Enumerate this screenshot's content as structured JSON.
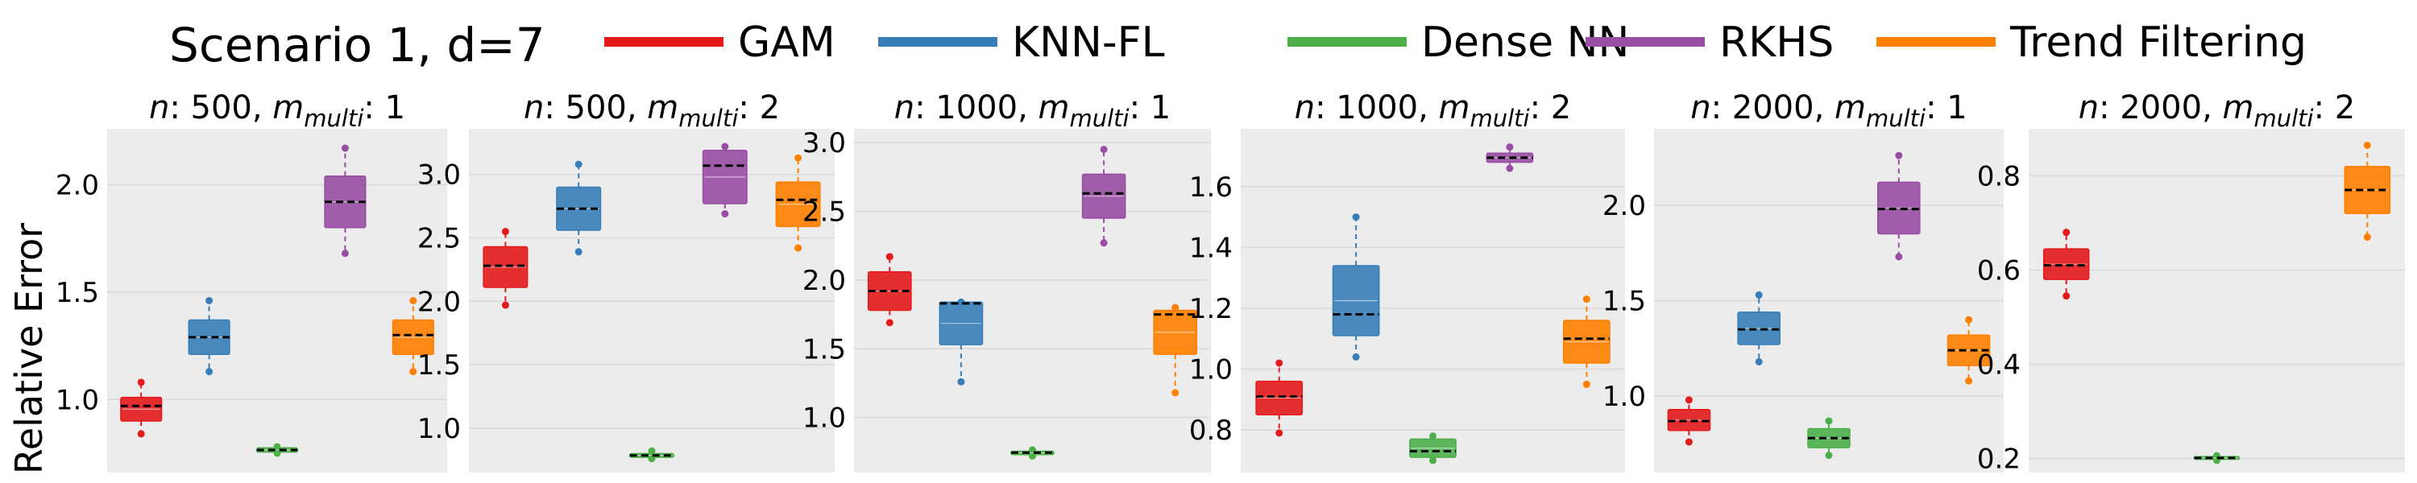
{
  "figure": {
    "legend_title": "Scenario 1, d=7",
    "ylabel": "Relative Error"
  },
  "chart_data": {
    "type": "box",
    "title": "Scenario 1, d=7",
    "ylabel": "Relative Error",
    "xlabel": "",
    "legend_placement": "top",
    "grid": true,
    "methods": [
      {
        "name": "GAM",
        "color": "#e41a1c"
      },
      {
        "name": "KNN-FL",
        "color": "#377eb8"
      },
      {
        "name": "Dense NN",
        "color": "#4daf4a"
      },
      {
        "name": "RKHS",
        "color": "#984ea3"
      },
      {
        "name": "Trend Filtering",
        "color": "#ff7f00"
      }
    ],
    "panels": [
      {
        "n": "500",
        "m_multi": "1",
        "ylim": [
          0.66,
          2.26
        ],
        "yticks": [
          1.0,
          1.5,
          2.0
        ],
        "ytick_labels": [
          "1.0",
          "1.5",
          "2.0"
        ],
        "boxes": [
          {
            "method": "GAM",
            "whislo": 0.84,
            "q1": 0.9,
            "median": 0.97,
            "q3": 1.01,
            "whishi": 1.08
          },
          {
            "method": "KNN-FL",
            "whislo": 1.13,
            "q1": 1.21,
            "median": 1.29,
            "q3": 1.37,
            "whishi": 1.46
          },
          {
            "method": "Dense NN",
            "whislo": 0.75,
            "q1": 0.755,
            "median": 0.765,
            "q3": 0.775,
            "whishi": 0.78
          },
          {
            "method": "RKHS",
            "whislo": 1.68,
            "q1": 1.8,
            "median": 1.92,
            "q3": 2.04,
            "whishi": 2.17
          },
          {
            "method": "Trend Filtering",
            "whislo": 1.13,
            "q1": 1.21,
            "median": 1.3,
            "q3": 1.37,
            "whishi": 1.46
          }
        ]
      },
      {
        "n": "500",
        "m_multi": "2",
        "ylim": [
          0.65,
          3.36
        ],
        "yticks": [
          1.0,
          1.5,
          2.0,
          2.5,
          3.0
        ],
        "ytick_labels": [
          "1.0",
          "1.5",
          "2.0",
          "2.5",
          "3.0"
        ],
        "boxes": [
          {
            "method": "GAM",
            "whislo": 1.97,
            "q1": 2.11,
            "median": 2.28,
            "q3": 2.43,
            "whishi": 2.55
          },
          {
            "method": "KNN-FL",
            "whislo": 2.39,
            "q1": 2.56,
            "median": 2.73,
            "q3": 2.9,
            "whishi": 3.08
          },
          {
            "method": "Dense NN",
            "whislo": 0.76,
            "q1": 0.77,
            "median": 0.785,
            "q3": 0.8,
            "whishi": 0.82
          },
          {
            "method": "RKHS",
            "whislo": 2.69,
            "q1": 2.77,
            "median": 3.07,
            "q3": 3.19,
            "whishi": 3.22
          },
          {
            "method": "Trend Filtering",
            "whislo": 2.42,
            "q1": 2.59,
            "median": 2.8,
            "q3": 2.94,
            "whishi": 3.13
          }
        ]
      },
      {
        "n": "1000",
        "m_multi": "1",
        "ylim": [
          0.6,
          3.1
        ],
        "yticks": [
          1.0,
          1.5,
          2.0,
          2.5,
          3.0
        ],
        "ytick_labels": [
          "1.0",
          "1.5",
          "2.0",
          "2.5",
          "3.0"
        ],
        "boxes": [
          {
            "method": "GAM",
            "whislo": 1.69,
            "q1": 1.78,
            "median": 1.92,
            "q3": 2.06,
            "whishi": 2.17
          },
          {
            "method": "KNN-FL",
            "whislo": 1.26,
            "q1": 1.53,
            "median": 1.83,
            "q3": 1.84,
            "whishi": 1.84
          },
          {
            "method": "Dense NN",
            "whislo": 0.72,
            "q1": 0.73,
            "median": 0.745,
            "q3": 0.755,
            "whishi": 0.765
          },
          {
            "method": "RKHS",
            "whislo": 2.27,
            "q1": 2.45,
            "median": 2.63,
            "q3": 2.77,
            "whishi": 2.95
          },
          {
            "method": "Trend Filtering",
            "whislo": 1.18,
            "q1": 1.46,
            "median": 1.75,
            "q3": 1.78,
            "whishi": 1.8
          }
        ]
      },
      {
        "n": "1000",
        "m_multi": "2",
        "ylim": [
          0.66,
          1.79
        ],
        "yticks": [
          0.8,
          1.0,
          1.2,
          1.4,
          1.6
        ],
        "ytick_labels": [
          "0.8",
          "1.0",
          "1.2",
          "1.4",
          "1.6"
        ],
        "boxes": [
          {
            "method": "GAM",
            "whislo": 0.79,
            "q1": 0.85,
            "median": 0.91,
            "q3": 0.96,
            "whishi": 1.02
          },
          {
            "method": "KNN-FL",
            "whislo": 1.04,
            "q1": 1.11,
            "median": 1.18,
            "q3": 1.34,
            "whishi": 1.5
          },
          {
            "method": "Dense NN",
            "whislo": 0.7,
            "q1": 0.71,
            "median": 0.73,
            "q3": 0.77,
            "whishi": 0.78
          },
          {
            "method": "RKHS",
            "whislo": 1.66,
            "q1": 1.68,
            "median": 1.695,
            "q3": 1.71,
            "whishi": 1.73
          },
          {
            "method": "Trend Filtering",
            "whislo": 0.95,
            "q1": 1.02,
            "median": 1.1,
            "q3": 1.16,
            "whishi": 1.23
          }
        ]
      },
      {
        "n": "2000",
        "m_multi": "1",
        "ylim": [
          0.6,
          2.4
        ],
        "yticks": [
          1.0,
          1.5,
          2.0
        ],
        "ytick_labels": [
          "1.0",
          "1.5",
          "2.0"
        ],
        "boxes": [
          {
            "method": "GAM",
            "whislo": 0.76,
            "q1": 0.82,
            "median": 0.87,
            "q3": 0.93,
            "whishi": 0.98
          },
          {
            "method": "KNN-FL",
            "whislo": 1.18,
            "q1": 1.27,
            "median": 1.35,
            "q3": 1.44,
            "whishi": 1.53
          },
          {
            "method": "Dense NN",
            "whislo": 0.69,
            "q1": 0.73,
            "median": 0.78,
            "q3": 0.83,
            "whishi": 0.87
          },
          {
            "method": "RKHS",
            "whislo": 1.73,
            "q1": 1.85,
            "median": 1.98,
            "q3": 2.12,
            "whishi": 2.26
          },
          {
            "method": "Trend Filtering",
            "whislo": 1.08,
            "q1": 1.16,
            "median": 1.24,
            "q3": 1.32,
            "whishi": 1.4
          }
        ]
      },
      {
        "n": "2000",
        "m_multi": "2",
        "ylim": [
          0.17,
          0.9
        ],
        "yticks": [
          0.2,
          0.4,
          0.6,
          0.8
        ],
        "ytick_labels": [
          "0.2",
          "0.4",
          "0.6",
          "0.8"
        ],
        "boxes": [
          {
            "method": "GAM",
            "whislo": 0.545,
            "q1": 0.58,
            "median": 0.61,
            "q3": 0.645,
            "whishi": 0.68
          },
          {
            "method": "KNN-FL",
            "whislo": null,
            "q1": null,
            "median": null,
            "q3": null,
            "whishi": null
          },
          {
            "method": "Dense NN",
            "whislo": 0.196,
            "q1": 0.198,
            "median": 0.201,
            "q3": 0.204,
            "whishi": 0.206
          },
          {
            "method": "RKHS",
            "whislo": null,
            "q1": null,
            "median": null,
            "q3": null,
            "whishi": null
          },
          {
            "method": "Trend Filtering",
            "whislo": 0.67,
            "q1": 0.72,
            "median": 0.77,
            "q3": 0.82,
            "whishi": 0.865
          }
        ]
      }
    ]
  }
}
